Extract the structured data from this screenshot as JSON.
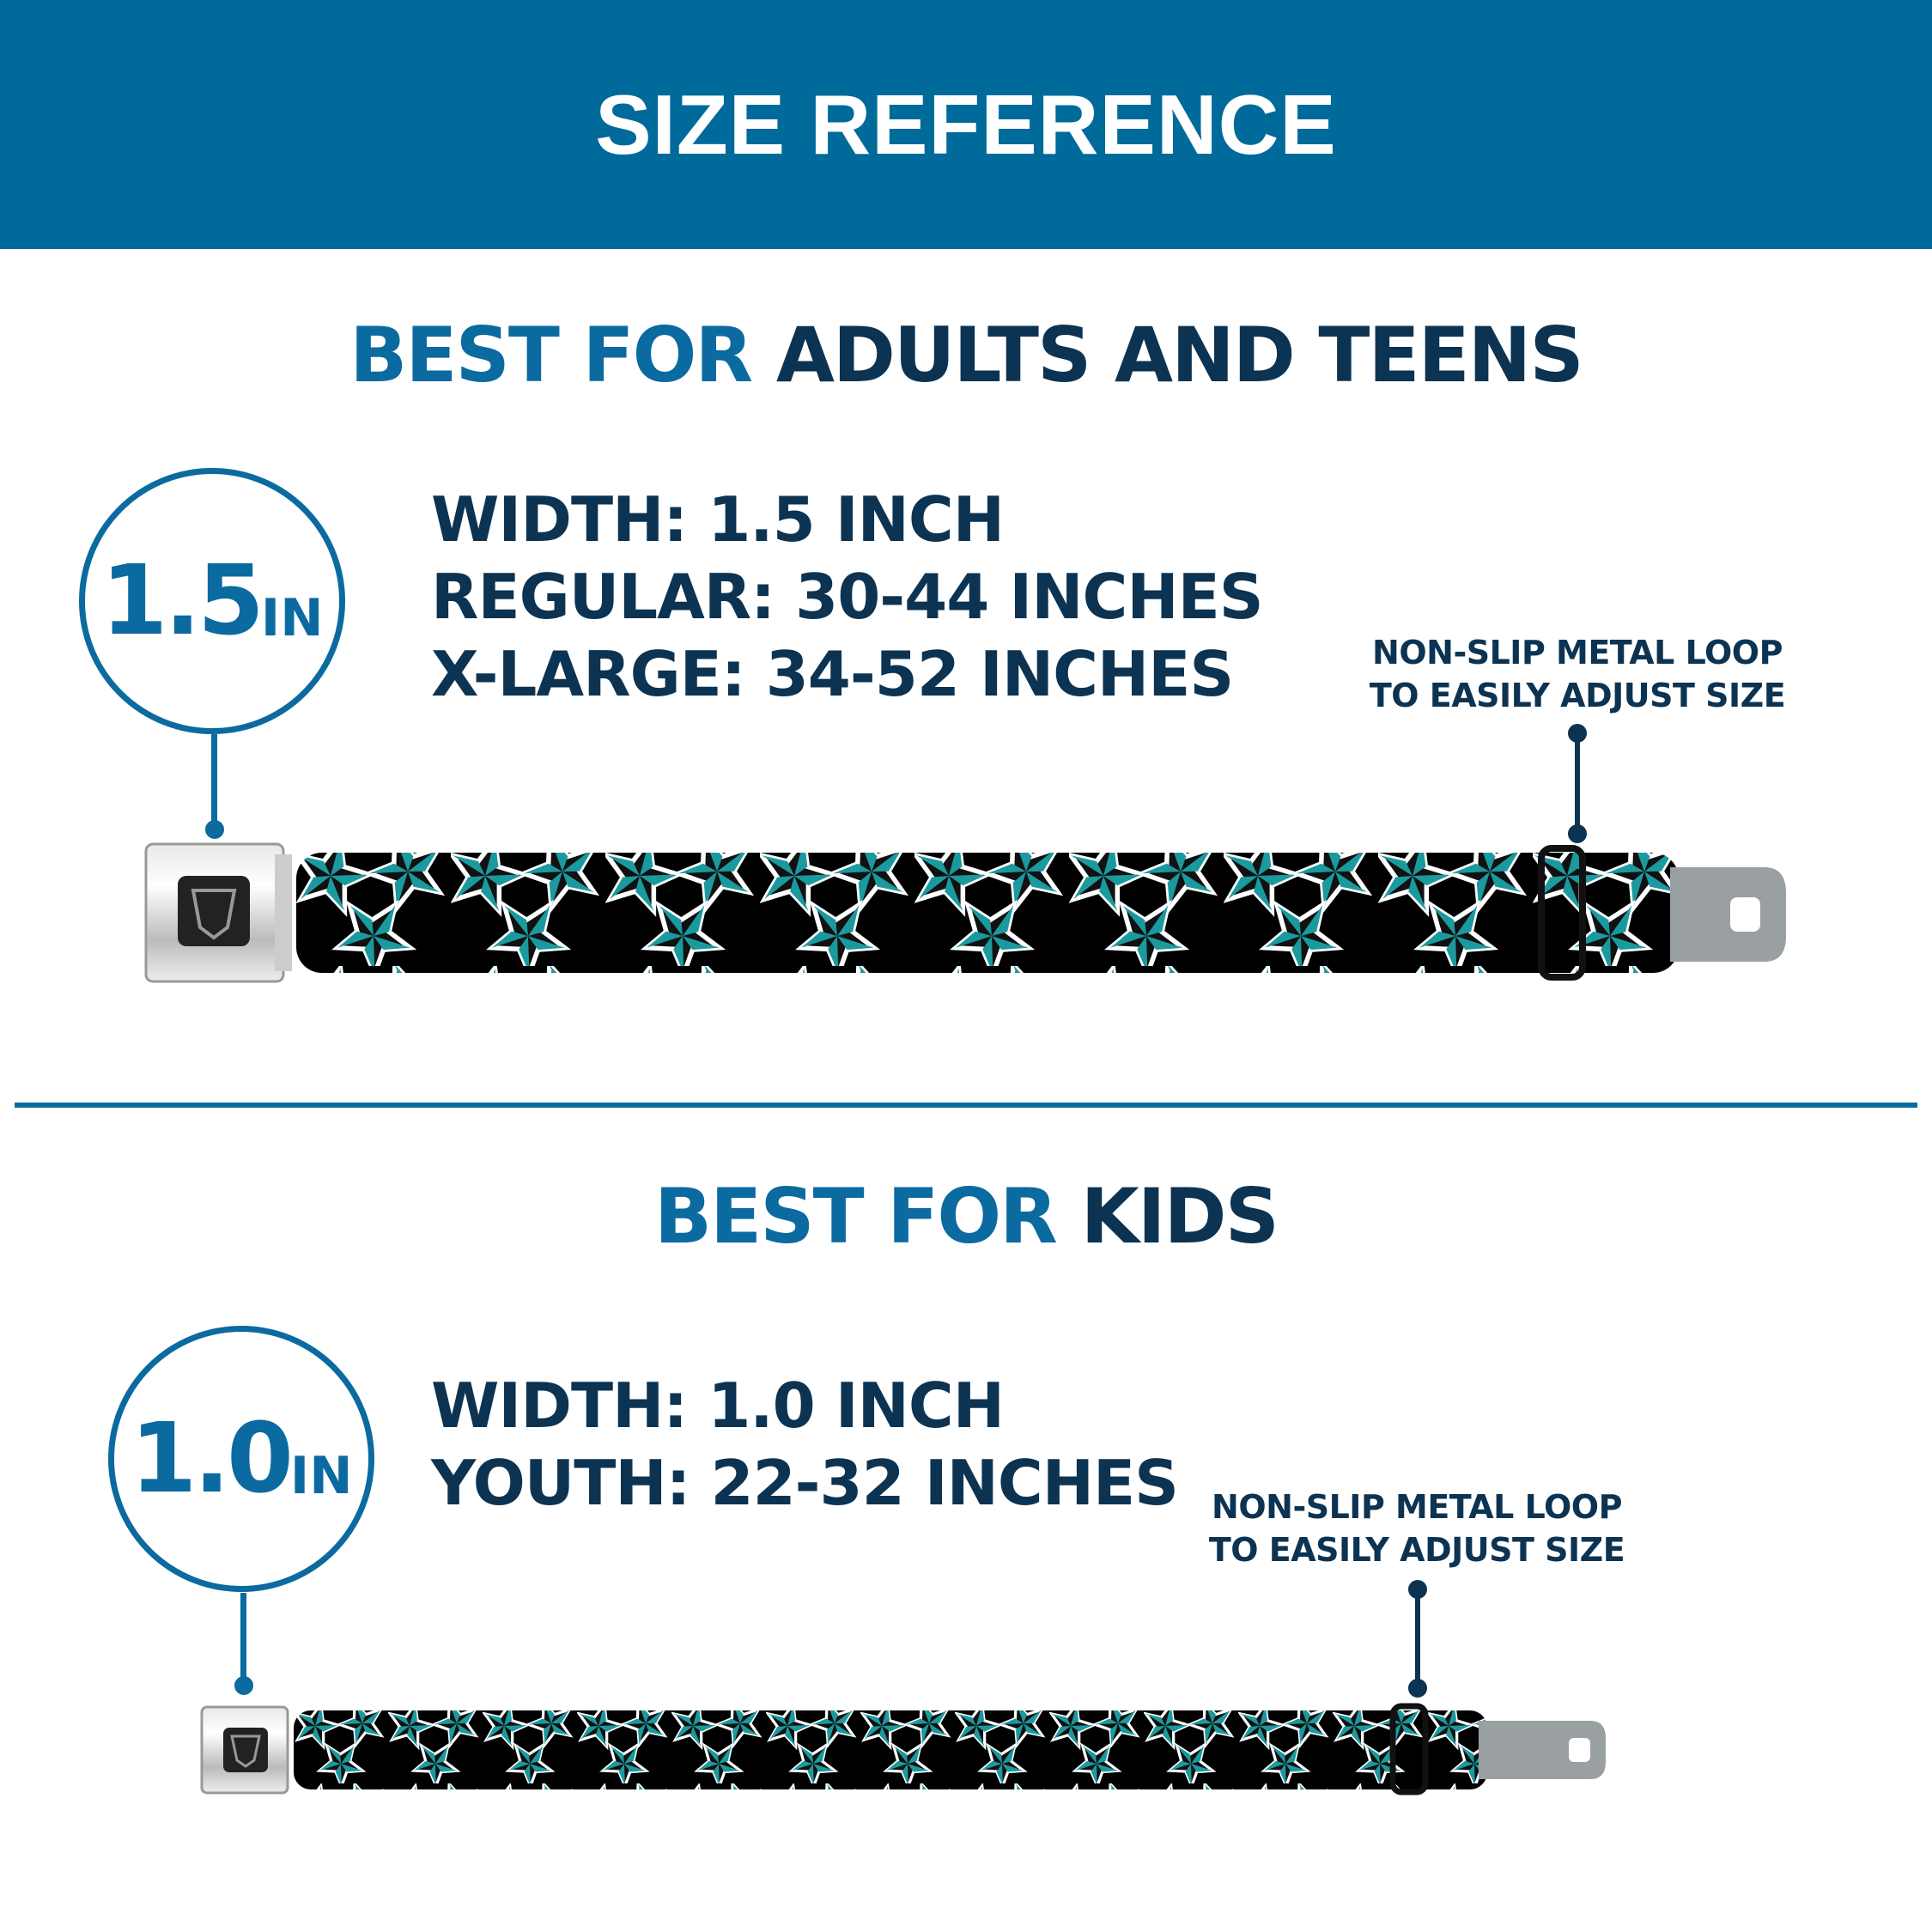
{
  "header": {
    "title": "SIZE REFERENCE"
  },
  "colors": {
    "header_bg": "#006a9a",
    "accent_blue": "#0b6aa0",
    "navy": "#0c3352",
    "star_teal": "#1a9a9e"
  },
  "adults": {
    "heading_prefix": "BEST FOR",
    "heading_main": "ADULTS AND TEENS",
    "badge_value": "1.5",
    "badge_unit": "IN",
    "specs": [
      "WIDTH: 1.5 INCH",
      "REGULAR: 30-44 INCHES",
      "X-LARGE: 34-52 INCHES"
    ],
    "note_lines": [
      "NON-SLIP METAL LOOP",
      "TO EASILY ADJUST SIZE"
    ]
  },
  "kids": {
    "heading_prefix": "BEST FOR",
    "heading_main": "KIDS",
    "badge_value": "1.0",
    "badge_unit": "IN",
    "specs": [
      "WIDTH: 1.0 INCH",
      "YOUTH: 22-32 INCHES"
    ],
    "note_lines": [
      "NON-SLIP METAL LOOP",
      "TO EASILY ADJUST SIZE"
    ]
  }
}
